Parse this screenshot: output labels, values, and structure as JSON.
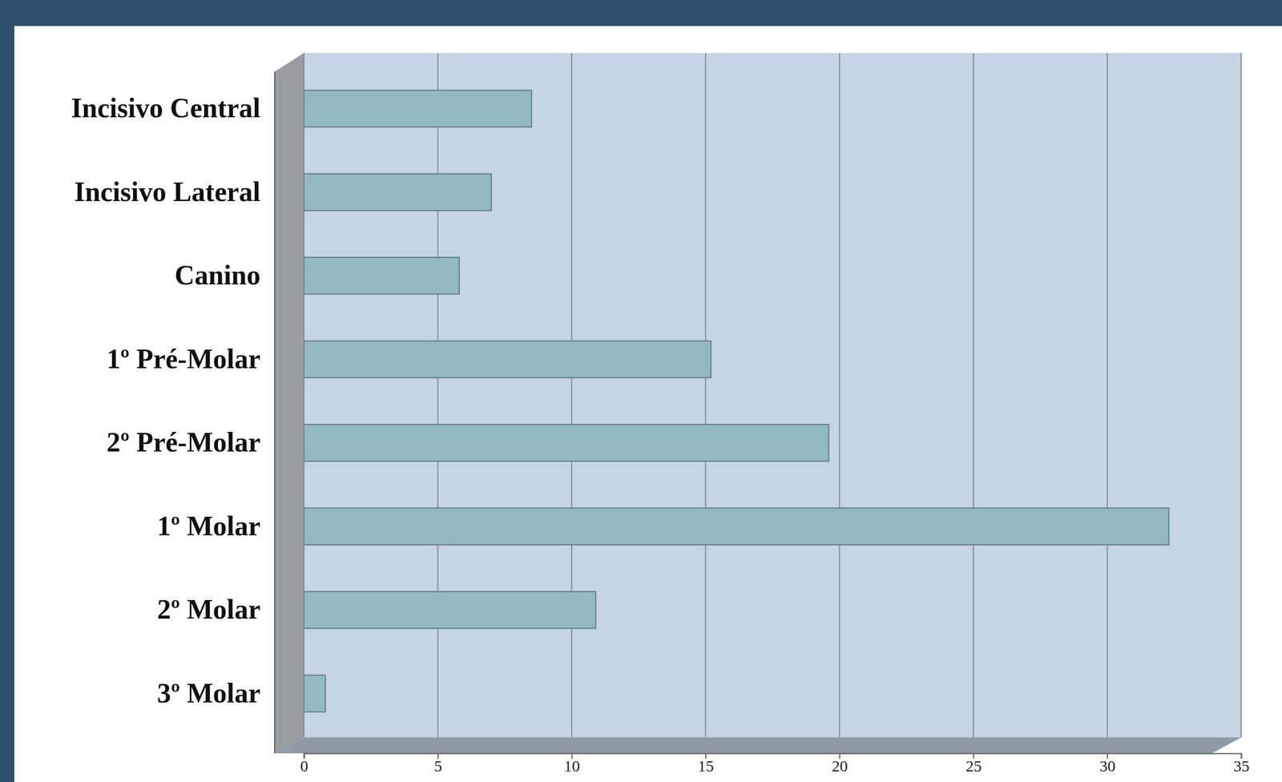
{
  "chart_data": {
    "type": "bar",
    "orientation": "horizontal",
    "categories": [
      "Incisivo Central",
      "Incisivo Lateral",
      "Canino",
      "1º Pré-Molar",
      "2º Pré-Molar",
      "1º Molar",
      "2º Molar",
      "3º Molar"
    ],
    "values": [
      8.5,
      7,
      5.8,
      15.2,
      19.6,
      32.3,
      10.9,
      0.8
    ],
    "color": "#93b9c3",
    "xlim": [
      0,
      35
    ],
    "xticks": [
      0,
      5,
      10,
      15,
      20,
      25,
      30,
      35
    ],
    "grid": true
  }
}
